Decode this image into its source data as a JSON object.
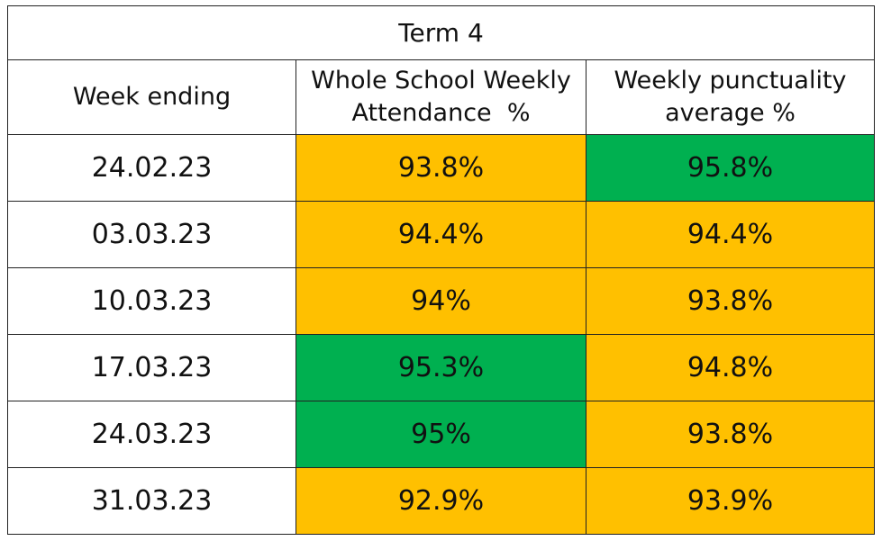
{
  "table": {
    "title": "Term 4",
    "headers": {
      "week_ending": "Week ending",
      "attendance_line1": "Whole School Weekly",
      "attendance_line2": "Attendance  %",
      "punctuality_line1": "Weekly punctuality",
      "punctuality_line2": "average %"
    },
    "rows": [
      {
        "week": "24.02.23",
        "attendance": "93.8%",
        "punctuality": "95.8%"
      },
      {
        "week": "03.03.23",
        "attendance": "94.4%",
        "punctuality": "94.4%"
      },
      {
        "week": "10.03.23",
        "attendance": "94%",
        "punctuality": "93.8%"
      },
      {
        "week": "17.03.23",
        "attendance": "95.3%",
        "punctuality": "94.8%"
      },
      {
        "week": "24.03.23",
        "attendance": "95%",
        "punctuality": "93.8%"
      },
      {
        "week": "31.03.23",
        "attendance": "92.9%",
        "punctuality": "93.9%"
      }
    ],
    "cell_colors": {
      "rows.0.attendance": "#FFC000",
      "rows.0.punctuality": "#00B050",
      "rows.1.attendance": "#FFC000",
      "rows.1.punctuality": "#FFC000",
      "rows.2.attendance": "#FFC000",
      "rows.2.punctuality": "#FFC000",
      "rows.3.attendance": "#00B050",
      "rows.3.punctuality": "#FFC000",
      "rows.4.attendance": "#00B050",
      "rows.4.punctuality": "#FFC000",
      "rows.5.attendance": "#FFC000",
      "rows.5.punctuality": "#FFC000"
    }
  }
}
